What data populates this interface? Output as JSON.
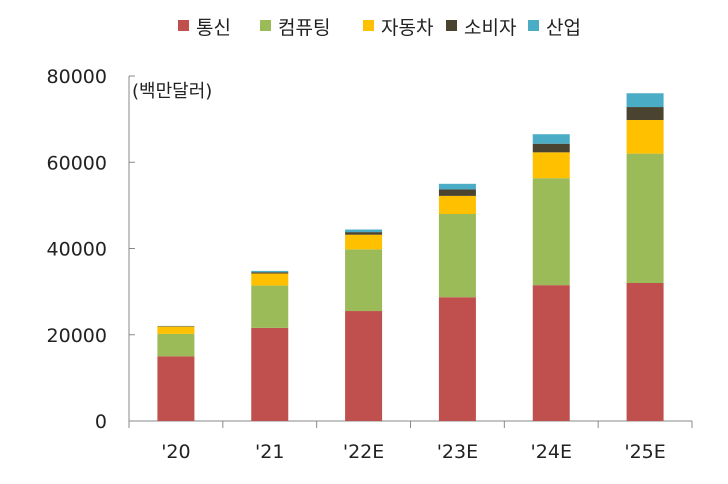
{
  "chart_data": {
    "type": "bar",
    "stacked": true,
    "unit_label": "(백만달러)",
    "categories": [
      "'20",
      "'21",
      "'22E",
      "'23E",
      "'24E",
      "'25E"
    ],
    "series": [
      {
        "name": "통신",
        "color": "#c0504d",
        "values": [
          15000,
          21600,
          25500,
          28700,
          31500,
          32000
        ]
      },
      {
        "name": "컴퓨팅",
        "color": "#9bbb59",
        "values": [
          5200,
          9800,
          14300,
          19300,
          24800,
          30000
        ]
      },
      {
        "name": "자동차",
        "color": "#ffc000",
        "values": [
          1700,
          2800,
          3400,
          4200,
          6000,
          7800
        ]
      },
      {
        "name": "소비자",
        "color": "#4a4330",
        "values": [
          100,
          300,
          600,
          1500,
          2000,
          3000
        ]
      },
      {
        "name": "산업",
        "color": "#4bacc6",
        "values": [
          50,
          300,
          600,
          1300,
          2200,
          3200
        ]
      }
    ],
    "ylim": [
      0,
      80000
    ],
    "yticks": [
      0,
      20000,
      40000,
      60000,
      80000
    ],
    "legend_position": "top",
    "grid": false
  }
}
